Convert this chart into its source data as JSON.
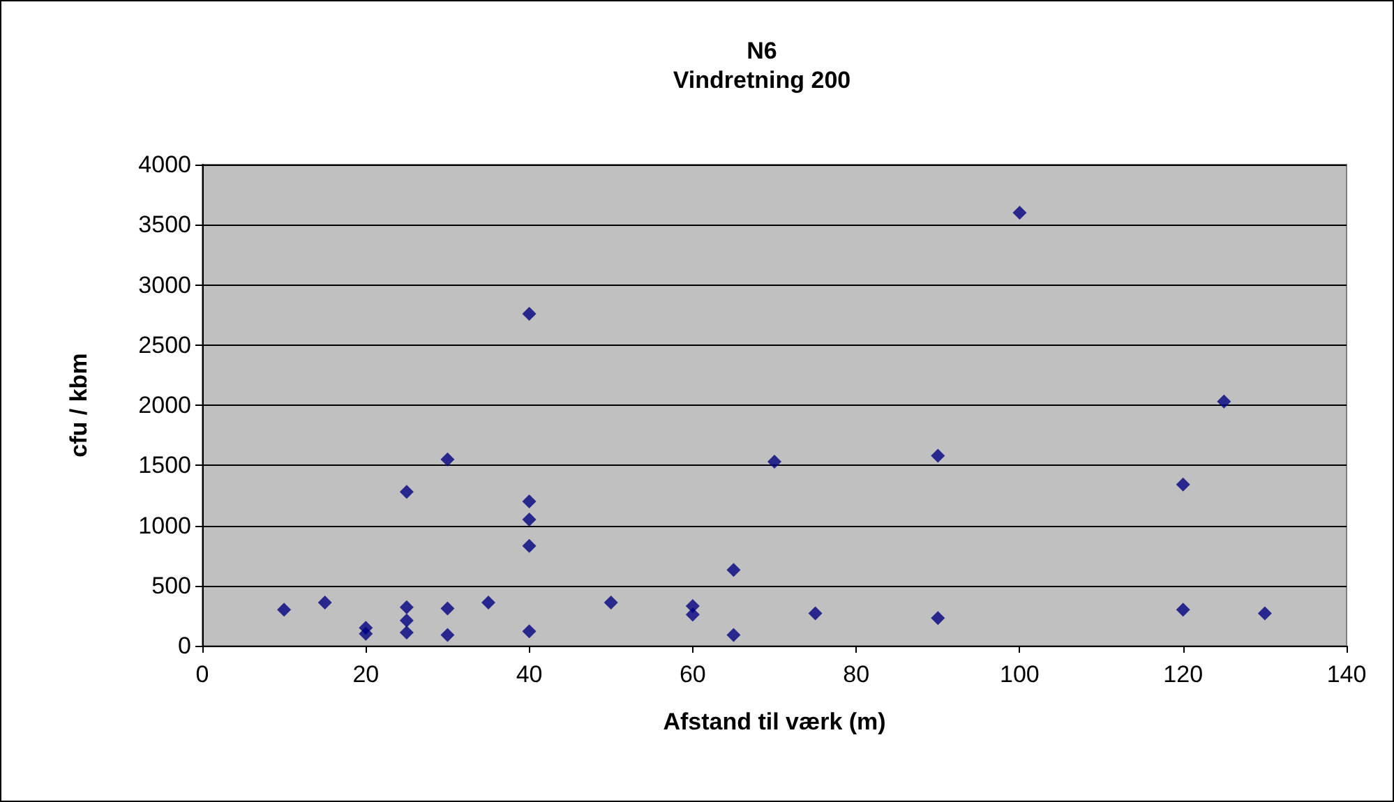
{
  "chart_data": {
    "type": "scatter",
    "title": "N6",
    "subtitle": "Vindretning 200",
    "xlabel": "Afstand til værk (m)",
    "ylabel": "cfu / kbm",
    "x": [
      10,
      15,
      20,
      20,
      25,
      25,
      25,
      25,
      30,
      30,
      30,
      35,
      40,
      40,
      40,
      40,
      40,
      50,
      60,
      60,
      65,
      65,
      70,
      75,
      90,
      90,
      100,
      120,
      120,
      125,
      130
    ],
    "series": [
      {
        "color": "#000080",
        "values": [
          300,
          360,
          150,
          100,
          1280,
          320,
          210,
          110,
          1550,
          310,
          90,
          360,
          2760,
          1200,
          1050,
          830,
          120,
          360,
          330,
          260,
          630,
          90,
          1530,
          270,
          1580,
          230,
          3600,
          1340,
          300,
          2030,
          270
        ]
      }
    ],
    "xlim": [
      0,
      140
    ],
    "xticks": [
      0,
      20,
      40,
      60,
      80,
      100,
      120,
      140
    ],
    "ylim": [
      0,
      4000
    ],
    "yticks": [
      0,
      500,
      1000,
      1500,
      2000,
      2500,
      3000,
      3500,
      4000
    ],
    "grid": "y",
    "marker": "diamond"
  }
}
